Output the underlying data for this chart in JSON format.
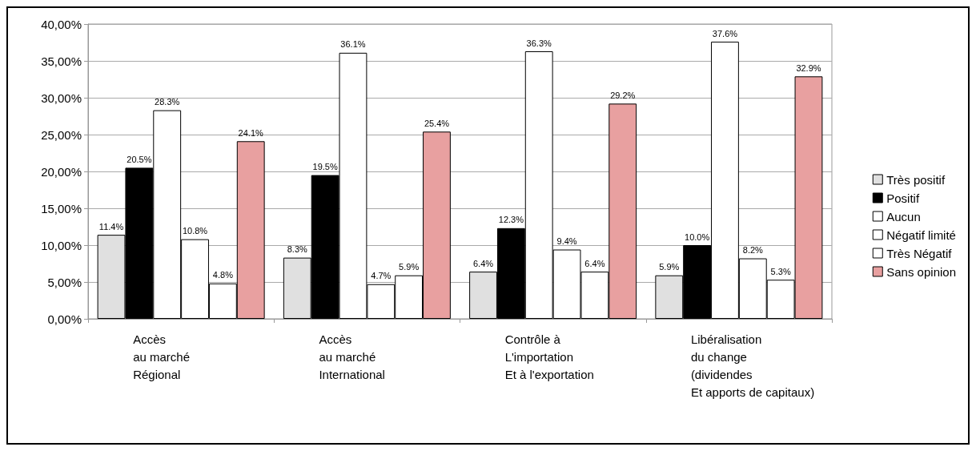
{
  "chart_data": {
    "type": "bar",
    "categories": [
      "Accès\nau marché\nRégional",
      "Accès\nau marché\nInternational",
      "Contrôle à\nL'importation\nEt à l'exportation",
      "Libéralisation\ndu change\n(dividendes\nEt apports de capitaux)"
    ],
    "series": [
      {
        "name": "Très positif",
        "color": "#e0e0e0",
        "values": [
          11.4,
          8.3,
          6.4,
          5.9
        ],
        "value_labels": [
          "11.4%",
          "8.3%",
          "6.4%",
          "5.9%"
        ]
      },
      {
        "name": "Positif",
        "color": "#000000",
        "values": [
          20.5,
          19.5,
          12.3,
          10.0
        ],
        "value_labels": [
          "20.5%",
          "19.5%",
          "12.3%",
          "10.0%"
        ]
      },
      {
        "name": "Aucun",
        "color": "#ffffff",
        "values": [
          28.3,
          36.1,
          36.3,
          37.6
        ],
        "value_labels": [
          "28.3%",
          "36.1%",
          "36.3%",
          "37.6%"
        ]
      },
      {
        "name": "Négatif limité",
        "color": "#ffffff",
        "values": [
          10.8,
          4.7,
          9.4,
          8.2
        ],
        "value_labels": [
          "10.8%",
          "4.7%",
          "9.4%",
          "8.2%"
        ]
      },
      {
        "name": "Très Négatif",
        "color": "#ffffff",
        "values": [
          4.8,
          5.9,
          6.4,
          5.3
        ],
        "value_labels": [
          "4.8%",
          "5.9%",
          "6.4%",
          "5.3%"
        ]
      },
      {
        "name": "Sans opinion",
        "color": "#e8a0a0",
        "values": [
          24.1,
          25.4,
          29.2,
          32.9
        ],
        "value_labels": [
          "24.1%",
          "25.4%",
          "29.2%",
          "32.9%"
        ]
      }
    ],
    "ylim": [
      0,
      40
    ],
    "yticks": [
      {
        "value": 0,
        "label": "0,00%"
      },
      {
        "value": 5,
        "label": "5,00%"
      },
      {
        "value": 10,
        "label": "10,00%"
      },
      {
        "value": 15,
        "label": "15,00%"
      },
      {
        "value": 20,
        "label": "20,00%"
      },
      {
        "value": 25,
        "label": "25,00%"
      },
      {
        "value": 30,
        "label": "30,00%"
      },
      {
        "value": 35,
        "label": "35,00%"
      },
      {
        "value": 40,
        "label": "40,00%"
      }
    ],
    "grid": "y",
    "legend": "right"
  }
}
